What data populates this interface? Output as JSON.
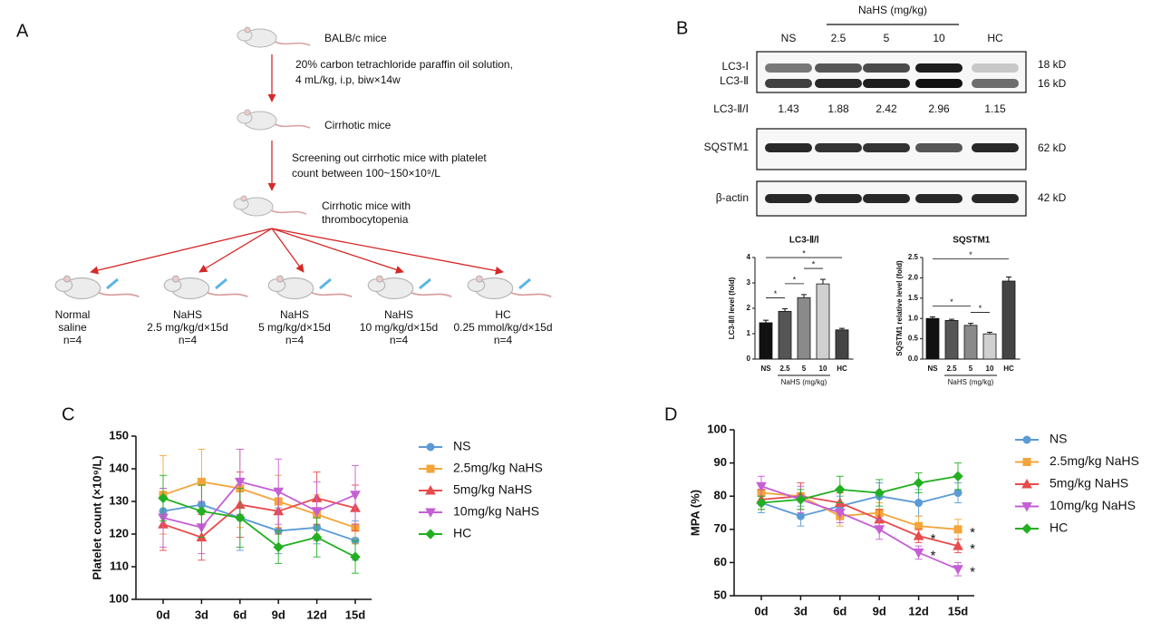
{
  "panel_labels": [
    "A",
    "B",
    "C",
    "D"
  ],
  "diagram": {
    "nodes": [
      {
        "label": [
          "BALB/c mice"
        ]
      },
      {
        "label": [
          "Cirrhotic mice"
        ]
      },
      {
        "label": [
          "Cirrhotic mice with",
          "thrombocytopenia"
        ]
      }
    ],
    "edges": [
      {
        "label": [
          "20% carbon tetrachloride paraffin oil solution,",
          "4 mL/kg, i.p, biw×14w"
        ]
      },
      {
        "label": [
          "Screening out cirrhotic mice with platelet",
          "count between 100~150×10⁹/L"
        ]
      }
    ],
    "groups": [
      {
        "label": [
          "Normal",
          "saline",
          "n=4"
        ]
      },
      {
        "label": [
          "NaHS",
          "2.5 mg/kg/d×15d",
          "n=4"
        ]
      },
      {
        "label": [
          "NaHS",
          "5 mg/kg/d×15d",
          "n=4"
        ]
      },
      {
        "label": [
          "NaHS",
          "10 mg/kg/d×15d",
          "n=4"
        ]
      },
      {
        "label": [
          "HC",
          "0.25 mmol/kg/d×15d",
          "n=4"
        ]
      }
    ]
  },
  "blot": {
    "lanes": [
      "NS",
      "2.5",
      "5",
      "10",
      "HC"
    ],
    "group_label": "NaHS (mg/kg)",
    "rows": [
      {
        "names": [
          "LC3-Ⅰ",
          "LC3-Ⅱ"
        ],
        "sizes": [
          "18 kD",
          "16 kD"
        ]
      },
      {
        "names": [
          "SQSTM1"
        ],
        "sizes": [
          "62 kD"
        ]
      },
      {
        "names": [
          "β-actin"
        ],
        "sizes": [
          "42 kD"
        ]
      }
    ],
    "ratio": {
      "label": "LC3-Ⅱ/Ⅰ",
      "values": [
        1.43,
        1.88,
        2.42,
        2.96,
        1.15
      ]
    }
  },
  "chart_data": [
    {
      "type": "bar",
      "title": "LC3-Ⅱ/Ⅰ",
      "ylabel": "LC3-Ⅱ/Ⅰ level (fold)",
      "xlabel": "NaHS (mg/kg)",
      "categories": [
        "NS",
        "2.5",
        "5",
        "10",
        "HC"
      ],
      "values": [
        1.43,
        1.88,
        2.42,
        2.96,
        1.15
      ],
      "errors": [
        0.1,
        0.1,
        0.12,
        0.18,
        0.06
      ],
      "colors": [
        "#111111",
        "#555555",
        "#8a8a8a",
        "#d0d0d0",
        "#444444"
      ],
      "ylim": [
        0,
        4
      ],
      "yticks": [
        0,
        1,
        2,
        3,
        4
      ],
      "significance": [
        {
          "from": "NS",
          "to": "2.5",
          "label": "*"
        },
        {
          "from": "2.5",
          "to": "5",
          "label": "*"
        },
        {
          "from": "5",
          "to": "10",
          "label": "*"
        },
        {
          "from": "NS",
          "to": "HC",
          "label": "*"
        }
      ]
    },
    {
      "type": "bar",
      "title": "SQSTM1",
      "ylabel": "SQSTM1 relative level (fold)",
      "xlabel": "NaHS (mg/kg)",
      "categories": [
        "NS",
        "2.5",
        "5",
        "10",
        "HC"
      ],
      "values": [
        1.0,
        0.95,
        0.83,
        0.62,
        1.92
      ],
      "errors": [
        0.04,
        0.03,
        0.05,
        0.04,
        0.1
      ],
      "colors": [
        "#111111",
        "#555555",
        "#8a8a8a",
        "#d0d0d0",
        "#444444"
      ],
      "ylim": [
        0,
        2.5
      ],
      "yticks": [
        {
          "value": 0,
          "label": "0.0"
        },
        0.5,
        {
          "value": 1,
          "label": "1.0"
        },
        1.5,
        {
          "value": 2,
          "label": "2.0"
        },
        2.5
      ],
      "significance": [
        {
          "from": "NS",
          "to": "5",
          "label": "*"
        },
        {
          "from": "5",
          "to": "10",
          "label": "*"
        },
        {
          "from": "NS",
          "to": "HC",
          "label": "*"
        }
      ]
    },
    {
      "type": "line",
      "ylabel": "Platelet count (×10⁹/L)",
      "categories": [
        "0d",
        "3d",
        "6d",
        "9d",
        "12d",
        "15d"
      ],
      "ylim": [
        100,
        150
      ],
      "yticks": [
        100,
        110,
        120,
        130,
        140,
        150
      ],
      "legend": "right",
      "series": [
        {
          "name": "NS",
          "color": "#5b9bd5",
          "marker": "circle",
          "values": [
            127,
            129,
            125,
            121,
            122,
            118
          ],
          "errors": [
            7,
            6,
            10,
            7,
            5,
            6
          ]
        },
        {
          "name": "2.5mg/kg NaHS",
          "color": "#f4a43a",
          "marker": "square",
          "values": [
            132,
            136,
            134,
            130,
            126,
            122
          ],
          "errors": [
            12,
            10,
            12,
            8,
            6,
            5
          ]
        },
        {
          "name": "5mg/kg NaHS",
          "color": "#e84b4b",
          "marker": "triangle",
          "values": [
            123,
            119,
            129,
            127,
            131,
            128
          ],
          "errors": [
            8,
            7,
            10,
            7,
            8,
            7
          ]
        },
        {
          "name": "10mg/kg NaHS",
          "color": "#c55fd6",
          "marker": "triangle-down",
          "values": [
            125,
            122,
            136,
            133,
            127,
            132
          ],
          "errors": [
            9,
            8,
            10,
            10,
            9,
            9
          ]
        },
        {
          "name": "HC",
          "color": "#22b022",
          "marker": "diamond",
          "values": [
            131,
            127,
            125,
            116,
            119,
            113
          ],
          "errors": [
            7,
            8,
            9,
            5,
            6,
            5
          ]
        }
      ],
      "annotations": []
    },
    {
      "type": "line",
      "ylabel": "MPA (%)",
      "categories": [
        "0d",
        "3d",
        "6d",
        "9d",
        "12d",
        "15d"
      ],
      "ylim": [
        50,
        100
      ],
      "yticks": [
        50,
        60,
        70,
        80,
        90,
        100
      ],
      "legend": "right",
      "series": [
        {
          "name": "NS",
          "color": "#5b9bd5",
          "marker": "circle",
          "values": [
            78,
            74,
            77,
            80,
            78,
            81
          ],
          "errors": [
            3,
            3,
            3,
            4,
            4,
            3
          ]
        },
        {
          "name": "2.5mg/kg NaHS",
          "color": "#f4a43a",
          "marker": "square",
          "values": [
            81,
            80,
            74,
            75,
            71,
            70
          ],
          "errors": [
            3,
            4,
            3,
            3,
            3,
            3
          ]
        },
        {
          "name": "5mg/kg NaHS",
          "color": "#e84b4b",
          "marker": "triangle",
          "values": [
            79,
            80,
            78,
            73,
            68,
            65
          ],
          "errors": [
            3,
            4,
            3,
            3,
            2,
            2
          ]
        },
        {
          "name": "10mg/kg NaHS",
          "color": "#c55fd6",
          "marker": "triangle-down",
          "values": [
            83,
            79,
            75,
            70,
            63,
            58
          ],
          "errors": [
            3,
            4,
            3,
            3,
            2,
            2
          ]
        },
        {
          "name": "HC",
          "color": "#22b022",
          "marker": "diamond",
          "values": [
            78,
            79,
            82,
            81,
            84,
            86
          ],
          "errors": [
            2,
            3,
            4,
            4,
            3,
            4
          ]
        }
      ],
      "annotations": [
        {
          "x": "12d",
          "series": "5mg/kg NaHS",
          "label": "*"
        },
        {
          "x": "12d",
          "series": "10mg/kg NaHS",
          "label": "*"
        },
        {
          "x": "15d",
          "series": "2.5mg/kg NaHS",
          "label": "*"
        },
        {
          "x": "15d",
          "series": "5mg/kg NaHS",
          "label": "*"
        },
        {
          "x": "15d",
          "series": "10mg/kg NaHS",
          "label": "*"
        }
      ]
    }
  ]
}
